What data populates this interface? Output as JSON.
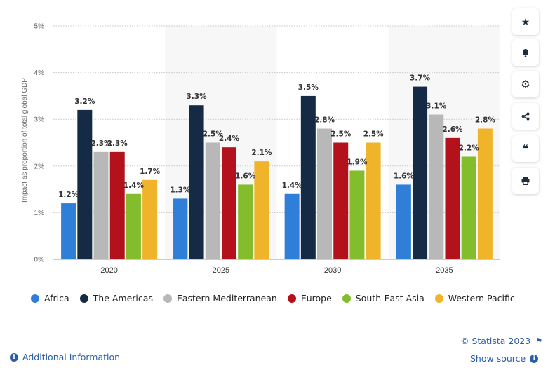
{
  "chart_data": {
    "type": "bar",
    "categories": [
      "2020",
      "2025",
      "2030",
      "2035"
    ],
    "series": [
      {
        "name": "Africa",
        "color": "#2f7ed8",
        "values": [
          1.2,
          1.3,
          1.4,
          1.6
        ]
      },
      {
        "name": "The Americas",
        "color": "#152a45",
        "values": [
          3.2,
          3.3,
          3.5,
          3.7
        ]
      },
      {
        "name": "Eastern Mediterranean",
        "color": "#b8b8b8",
        "values": [
          2.3,
          2.5,
          2.8,
          3.1
        ]
      },
      {
        "name": "Europe",
        "color": "#b3121c",
        "values": [
          2.3,
          2.4,
          2.5,
          2.6
        ]
      },
      {
        "name": "South-East Asia",
        "color": "#84bd2c",
        "values": [
          1.4,
          1.6,
          1.9,
          2.2
        ]
      },
      {
        "name": "Western Pacific",
        "color": "#f0b42a",
        "values": [
          1.7,
          2.1,
          2.5,
          2.8
        ]
      }
    ],
    "value_suffix": "%",
    "title": "",
    "xlabel": "",
    "ylabel": "Impact as proportion of total global GDP",
    "ylim": [
      0,
      5
    ],
    "yticks": [
      "0%",
      "1%",
      "2%",
      "3%",
      "4%",
      "5%"
    ],
    "grid": true,
    "legend_position": "bottom"
  },
  "sidebar": {
    "icons": [
      "star-icon",
      "bell-icon",
      "gear-icon",
      "share-icon",
      "quote-icon",
      "print-icon"
    ]
  },
  "footer": {
    "copyright": "© Statista 2023",
    "additional_info": "Additional Information",
    "show_source": "Show source"
  }
}
